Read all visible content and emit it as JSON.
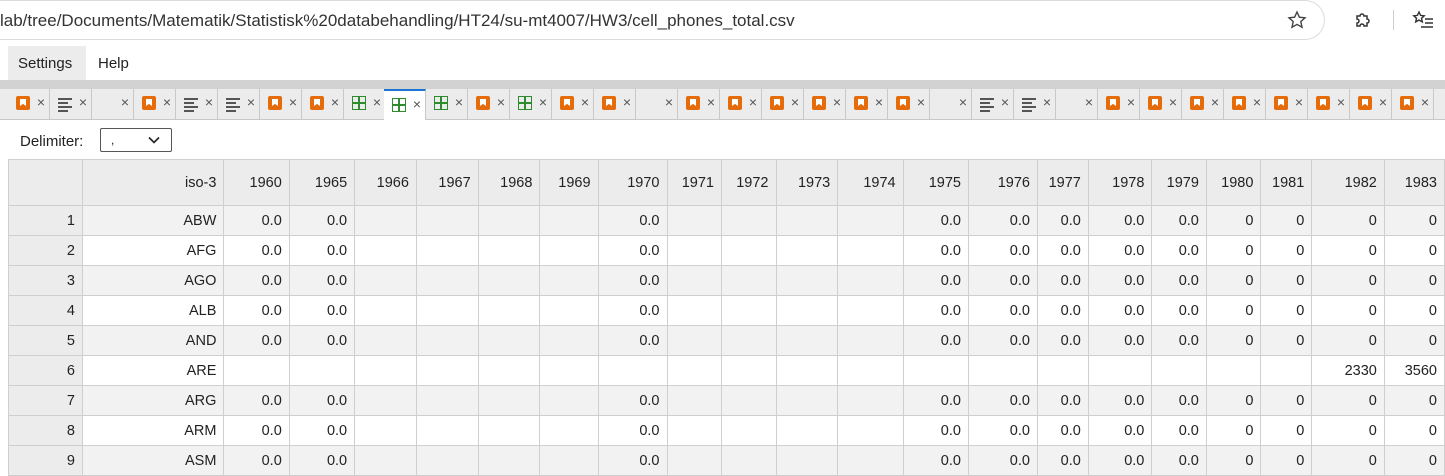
{
  "browser": {
    "url": "lab/tree/Documents/Matematik/Statistisk%20databehandling/HT24/su-mt4007/HW3/cell_phones_total.csv"
  },
  "menubar": {
    "items": [
      "Settings",
      "Help"
    ]
  },
  "tabs": [
    {
      "icon": "csv"
    },
    {
      "icon": "md"
    },
    {
      "icon": "blank"
    },
    {
      "icon": "csv"
    },
    {
      "icon": "md"
    },
    {
      "icon": "md"
    },
    {
      "icon": "csv"
    },
    {
      "icon": "csv"
    },
    {
      "icon": "grid"
    },
    {
      "icon": "grid",
      "active": true
    },
    {
      "icon": "grid"
    },
    {
      "icon": "csv"
    },
    {
      "icon": "grid"
    },
    {
      "icon": "csv"
    },
    {
      "icon": "csv"
    },
    {
      "icon": "blank"
    },
    {
      "icon": "csv"
    },
    {
      "icon": "csv"
    },
    {
      "icon": "csv"
    },
    {
      "icon": "csv"
    },
    {
      "icon": "csv"
    },
    {
      "icon": "csv"
    },
    {
      "icon": "blank"
    },
    {
      "icon": "md"
    },
    {
      "icon": "md"
    },
    {
      "icon": "blank"
    },
    {
      "icon": "csv"
    },
    {
      "icon": "csv"
    },
    {
      "icon": "csv"
    },
    {
      "icon": "csv"
    },
    {
      "icon": "csv"
    },
    {
      "icon": "csv"
    },
    {
      "icon": "csv"
    },
    {
      "icon": "csv"
    }
  ],
  "toolbar": {
    "delimiter_label": "Delimiter:",
    "delimiter_value": ","
  },
  "table": {
    "columns": [
      "",
      "iso-3",
      "1960",
      "1965",
      "1966",
      "1967",
      "1968",
      "1969",
      "1970",
      "1971",
      "1972",
      "1973",
      "1974",
      "1975",
      "1976",
      "1977",
      "1978",
      "1979",
      "1980",
      "1981",
      "1982",
      "1983"
    ],
    "rows": [
      [
        "1",
        "ABW",
        "0.0",
        "0.0",
        "",
        "",
        "",
        "",
        "0.0",
        "",
        "",
        "",
        "",
        "0.0",
        "0.0",
        "0.0",
        "0.0",
        "0.0",
        "0",
        "0",
        "0",
        "0"
      ],
      [
        "2",
        "AFG",
        "0.0",
        "0.0",
        "",
        "",
        "",
        "",
        "0.0",
        "",
        "",
        "",
        "",
        "0.0",
        "0.0",
        "0.0",
        "0.0",
        "0.0",
        "0",
        "0",
        "0",
        "0"
      ],
      [
        "3",
        "AGO",
        "0.0",
        "0.0",
        "",
        "",
        "",
        "",
        "0.0",
        "",
        "",
        "",
        "",
        "0.0",
        "0.0",
        "0.0",
        "0.0",
        "0.0",
        "0",
        "0",
        "0",
        "0"
      ],
      [
        "4",
        "ALB",
        "0.0",
        "0.0",
        "",
        "",
        "",
        "",
        "0.0",
        "",
        "",
        "",
        "",
        "0.0",
        "0.0",
        "0.0",
        "0.0",
        "0.0",
        "0",
        "0",
        "0",
        "0"
      ],
      [
        "5",
        "AND",
        "0.0",
        "0.0",
        "",
        "",
        "",
        "",
        "0.0",
        "",
        "",
        "",
        "",
        "0.0",
        "0.0",
        "0.0",
        "0.0",
        "0.0",
        "0",
        "0",
        "0",
        "0"
      ],
      [
        "6",
        "ARE",
        "",
        "",
        "",
        "",
        "",
        "",
        "",
        "",
        "",
        "",
        "",
        "",
        "",
        "",
        "",
        "",
        "",
        "",
        "2330",
        "3560"
      ],
      [
        "7",
        "ARG",
        "0.0",
        "0.0",
        "",
        "",
        "",
        "",
        "0.0",
        "",
        "",
        "",
        "",
        "0.0",
        "0.0",
        "0.0",
        "0.0",
        "0.0",
        "0",
        "0",
        "0",
        "0"
      ],
      [
        "8",
        "ARM",
        "0.0",
        "0.0",
        "",
        "",
        "",
        "",
        "0.0",
        "",
        "",
        "",
        "",
        "0.0",
        "0.0",
        "0.0",
        "0.0",
        "0.0",
        "0",
        "0",
        "0",
        "0"
      ],
      [
        "9",
        "ASM",
        "0.0",
        "0.0",
        "",
        "",
        "",
        "",
        "0.0",
        "",
        "",
        "",
        "",
        "0.0",
        "0.0",
        "0.0",
        "0.0",
        "0.0",
        "0",
        "0",
        "0",
        "0"
      ]
    ]
  }
}
